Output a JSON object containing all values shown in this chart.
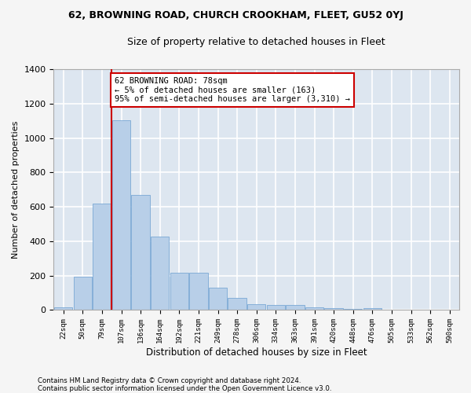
{
  "title": "62, BROWNING ROAD, CHURCH CROOKHAM, FLEET, GU52 0YJ",
  "subtitle": "Size of property relative to detached houses in Fleet",
  "xlabel": "Distribution of detached houses by size in Fleet",
  "ylabel": "Number of detached properties",
  "bar_color": "#b8cfe8",
  "bar_edge_color": "#6a9fd0",
  "background_color": "#dde6f0",
  "grid_color": "#ffffff",
  "categories": [
    "22sqm",
    "50sqm",
    "79sqm",
    "107sqm",
    "136sqm",
    "164sqm",
    "192sqm",
    "221sqm",
    "249sqm",
    "278sqm",
    "306sqm",
    "334sqm",
    "363sqm",
    "391sqm",
    "420sqm",
    "448sqm",
    "476sqm",
    "505sqm",
    "533sqm",
    "562sqm",
    "590sqm"
  ],
  "values": [
    18,
    195,
    620,
    1105,
    670,
    425,
    215,
    215,
    130,
    70,
    35,
    30,
    28,
    18,
    12,
    5,
    12,
    0,
    0,
    0,
    0
  ],
  "ylim": [
    0,
    1400
  ],
  "yticks": [
    0,
    200,
    400,
    600,
    800,
    1000,
    1200,
    1400
  ],
  "vline_x": 2.5,
  "vline_color": "#cc0000",
  "annotation_text": "62 BROWNING ROAD: 78sqm\n← 5% of detached houses are smaller (163)\n95% of semi-detached houses are larger (3,310) →",
  "annotation_box_color": "#ffffff",
  "annotation_box_edge_color": "#cc0000",
  "footnote1": "Contains HM Land Registry data © Crown copyright and database right 2024.",
  "footnote2": "Contains public sector information licensed under the Open Government Licence v3.0."
}
